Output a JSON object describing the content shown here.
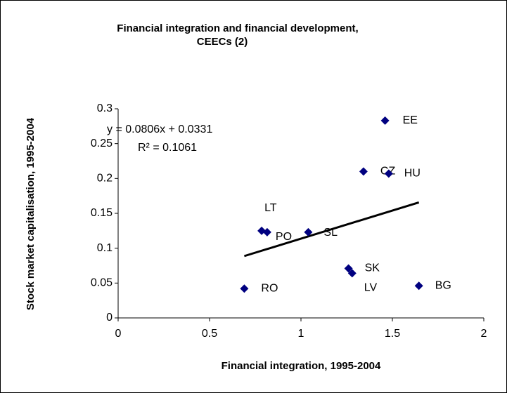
{
  "chart_data": {
    "type": "scatter",
    "title": [
      "Financial integration and financial development,",
      "CEECs (2)"
    ],
    "x_label": "Financial integration, 1995-2004",
    "y_label": "Stock market capitalisation, 1995-2004",
    "color": "#000080",
    "labels": [
      "EE",
      "CZ",
      "HU",
      "LT",
      "PO",
      "SL",
      "SK",
      "LV",
      "RO",
      "BG"
    ],
    "x": [
      1.46,
      1.342,
      1.48,
      0.785,
      0.815,
      1.04,
      1.26,
      1.28,
      0.69,
      1.645
    ],
    "values": [
      0.283,
      0.21,
      0.207,
      0.125,
      0.123,
      0.123,
      0.071,
      0.064,
      0.042,
      0.046
    ],
    "xlim": [
      0,
      2
    ],
    "xticks": [
      0,
      0.5,
      1,
      1.5,
      2
    ],
    "ylim": [
      0,
      0.3
    ],
    "yticks": [
      0,
      0.05,
      0.1,
      0.15,
      0.2,
      0.25,
      0.3
    ],
    "trendline": {
      "equation": "y = 0.0806x + 0.0331",
      "r_squared": "R² = 0.1061",
      "slope": 0.0806,
      "intercept": 0.0331,
      "color": "#000000"
    }
  }
}
